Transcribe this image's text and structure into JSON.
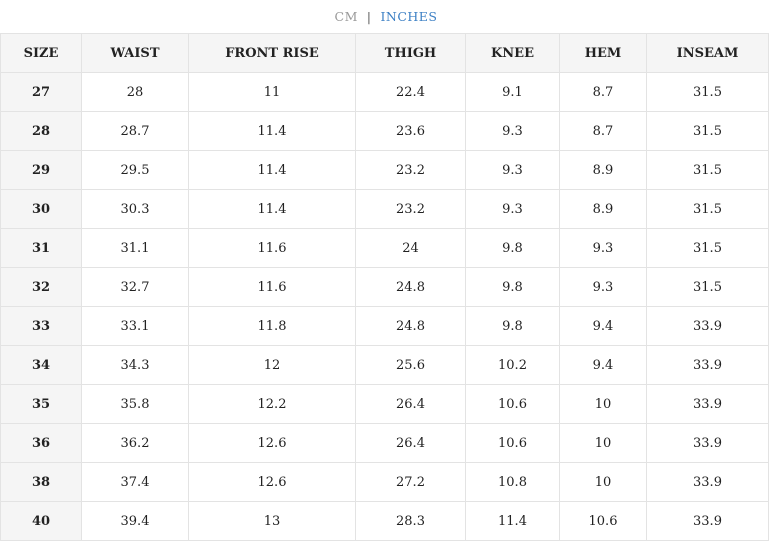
{
  "unit_toggle": {
    "options": [
      "CM",
      "INCHES"
    ],
    "active": 1
  },
  "table": {
    "headers": [
      "SIZE",
      "WAIST",
      "FRONT RISE",
      "THIGH",
      "KNEE",
      "HEM",
      "INSEAM"
    ],
    "rows": [
      [
        "27",
        "28",
        "11",
        "22.4",
        "9.1",
        "8.7",
        "31.5"
      ],
      [
        "28",
        "28.7",
        "11.4",
        "23.6",
        "9.3",
        "8.7",
        "31.5"
      ],
      [
        "29",
        "29.5",
        "11.4",
        "23.2",
        "9.3",
        "8.9",
        "31.5"
      ],
      [
        "30",
        "30.3",
        "11.4",
        "23.2",
        "9.3",
        "8.9",
        "31.5"
      ],
      [
        "31",
        "31.1",
        "11.6",
        "24",
        "9.8",
        "9.3",
        "31.5"
      ],
      [
        "32",
        "32.7",
        "11.6",
        "24.8",
        "9.8",
        "9.3",
        "31.5"
      ],
      [
        "33",
        "33.1",
        "11.8",
        "24.8",
        "9.8",
        "9.4",
        "33.9"
      ],
      [
        "34",
        "34.3",
        "12",
        "25.6",
        "10.2",
        "9.4",
        "33.9"
      ],
      [
        "35",
        "35.8",
        "12.2",
        "26.4",
        "10.6",
        "10",
        "33.9"
      ],
      [
        "36",
        "36.2",
        "12.6",
        "26.4",
        "10.6",
        "10",
        "33.9"
      ],
      [
        "38",
        "37.4",
        "12.6",
        "27.2",
        "10.8",
        "10",
        "33.9"
      ],
      [
        "40",
        "39.4",
        "13",
        "28.3",
        "11.4",
        "10.6",
        "33.9"
      ]
    ]
  }
}
